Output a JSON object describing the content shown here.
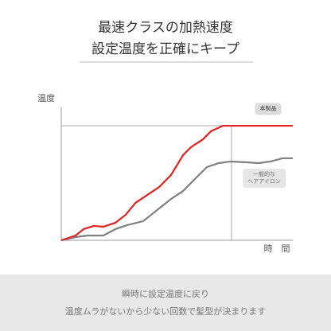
{
  "chart_data": {
    "type": "line",
    "title": "最速クラスの加熱速度",
    "subtitle": "設定温度を正確にキープ",
    "y_label": "温度",
    "x_label": "時　間",
    "xlim": [
      0,
      100
    ],
    "ylim": [
      0,
      100
    ],
    "target_y": 86.2,
    "target_x": 73.5,
    "series": [
      {
        "name": "本製品",
        "color": "#e32222",
        "x": [
          0,
          6.2,
          9.6,
          14.1,
          18.2,
          23.4,
          27.8,
          32.0,
          37.1,
          42.3,
          47.4,
          52.6,
          56.0,
          61.2,
          64.6,
          69.8,
          73.5,
          100
        ],
        "values": [
          0,
          3.6,
          8.4,
          10.8,
          10.2,
          13.2,
          19.2,
          28.1,
          34.1,
          40.1,
          49.1,
          64.1,
          70.1,
          76.0,
          82.0,
          86.2,
          86.2,
          86.2
        ]
      },
      {
        "name": "一般的な\nヘアアイロン",
        "color": "#808080",
        "x": [
          0,
          6.2,
          11.3,
          18.2,
          23.4,
          28.5,
          35.4,
          42.3,
          47.4,
          52.6,
          57.7,
          62.9,
          68.0,
          73.2,
          80.1,
          85.2,
          90.4,
          95.5,
          100
        ],
        "values": [
          0,
          2.4,
          3.6,
          3.6,
          8.4,
          11.4,
          14.4,
          24.0,
          31.1,
          37.1,
          46.1,
          55.1,
          58.1,
          59.3,
          58.7,
          58.1,
          59.3,
          61.7,
          61.7
        ]
      }
    ],
    "annotations": [
      "瞬時に設定温度に戻り",
      "温度ムラがないから少ない回数で髪型が決まります"
    ]
  }
}
